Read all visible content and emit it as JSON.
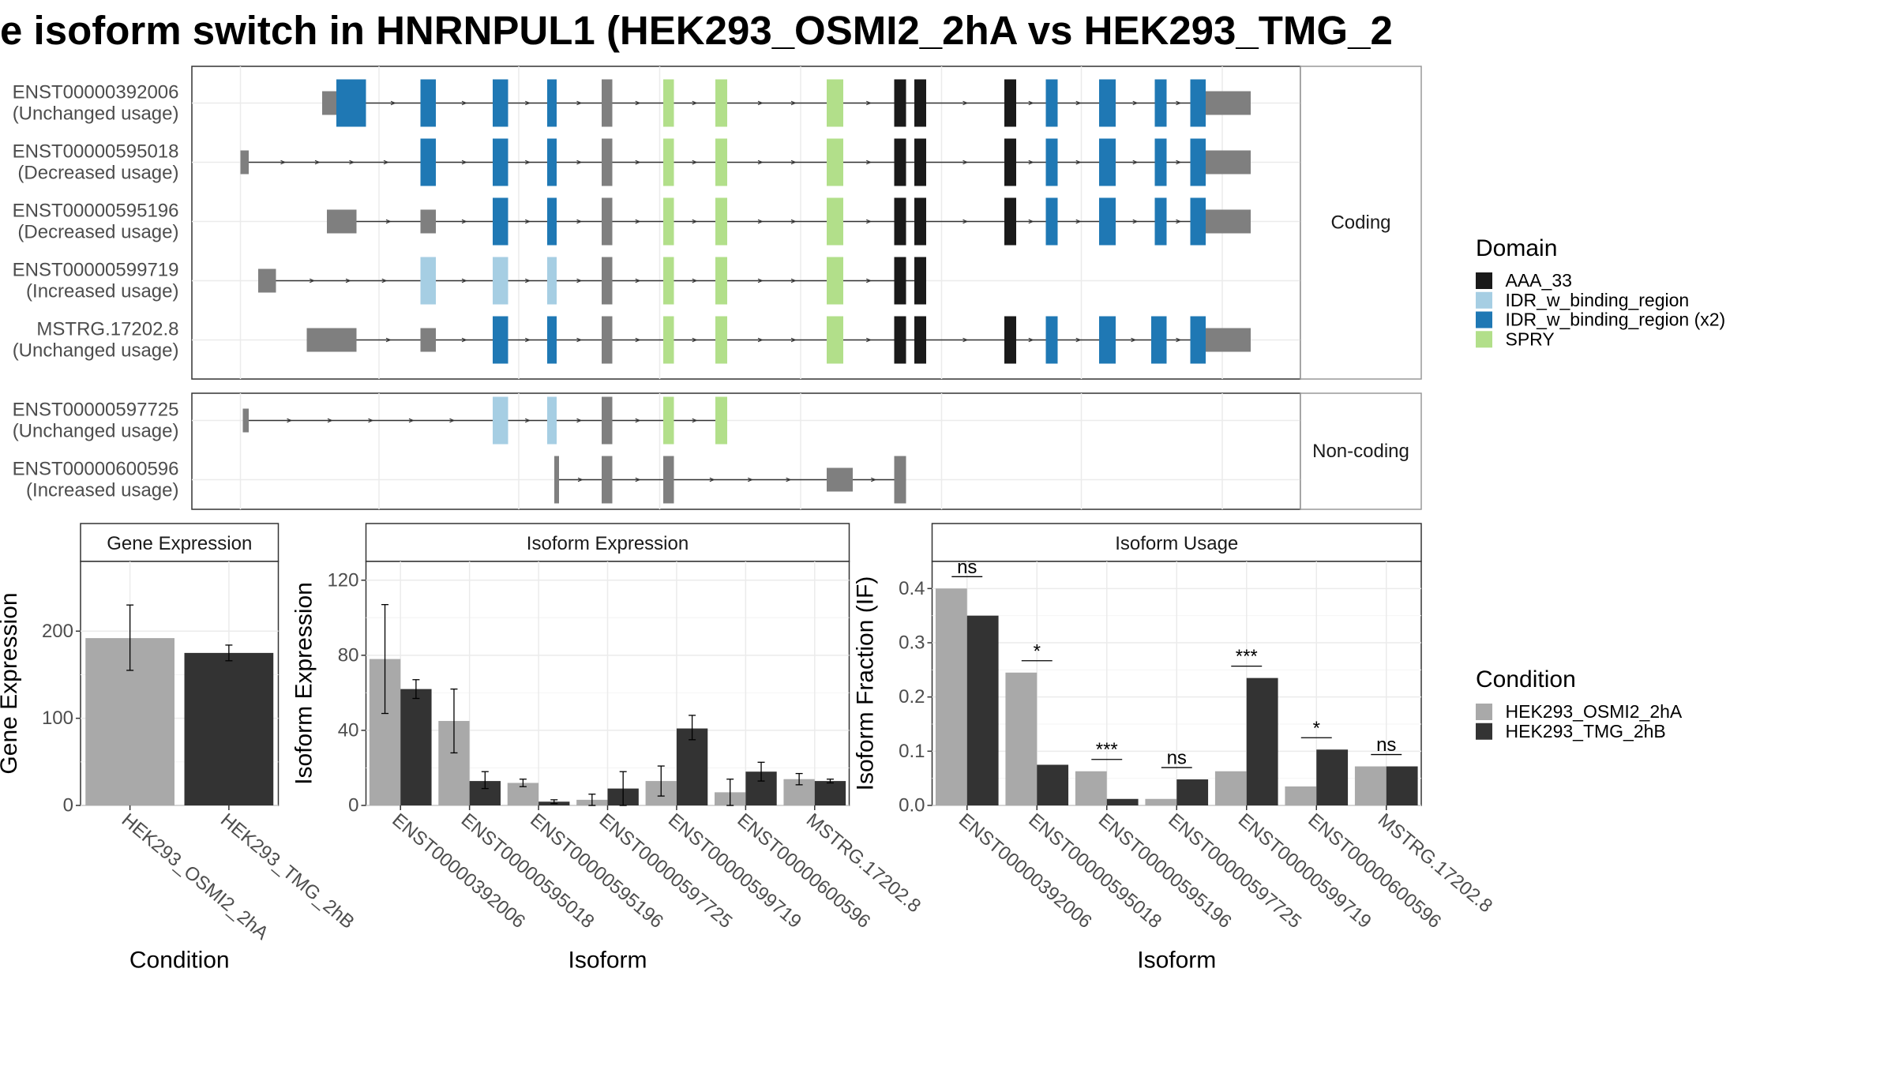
{
  "title": "e isoform switch in HNRNPUL1 (HEK293_OSMI2_2hA vs HEK293_TMG_2",
  "colors": {
    "AAA_33": "#1a1a1a",
    "IDR_w_binding_region": "#a6cee3",
    "IDR_w_binding_region (x2)": "#1f78b4",
    "SPRY": "#b2df8a",
    "none": "#7f7f7f",
    "cond_a": "#a9a9a9",
    "cond_b": "#333333"
  },
  "legends": {
    "domain": {
      "title": "Domain",
      "items": [
        "AAA_33",
        "IDR_w_binding_region",
        "IDR_w_binding_region (x2)",
        "SPRY"
      ]
    },
    "condition": {
      "title": "Condition",
      "items": [
        "HEK293_OSMI2_2hA",
        "HEK293_TMG_2hB"
      ]
    }
  },
  "transcripts": {
    "exon_positions": [
      [
        272,
        284
      ],
      [
        284,
        309
      ],
      [
        355,
        368
      ],
      [
        416,
        429
      ],
      [
        462,
        470
      ],
      [
        508,
        517
      ],
      [
        560,
        569
      ],
      [
        604,
        614
      ],
      [
        698,
        712
      ],
      [
        755,
        765
      ],
      [
        772,
        782
      ],
      [
        848,
        858
      ],
      [
        883,
        893
      ],
      [
        928,
        942
      ],
      [
        975,
        985
      ],
      [
        1005,
        1018
      ],
      [
        1018,
        1056
      ]
    ],
    "coding": {
      "panel_label": "Coding",
      "rows": [
        {
          "id": "ENST00000392006",
          "usage": "(Unchanged usage)",
          "span": [
            272,
            1056
          ],
          "exons": [
            [
              272,
              284,
              "none"
            ],
            [
              284,
              309,
              "IDR_w_binding_region (x2)"
            ],
            [
              355,
              368,
              "IDR_w_binding_region (x2)"
            ],
            [
              416,
              429,
              "IDR_w_binding_region (x2)"
            ],
            [
              462,
              470,
              "IDR_w_binding_region (x2)"
            ],
            [
              508,
              517,
              "none"
            ],
            [
              560,
              569,
              "SPRY"
            ],
            [
              604,
              614,
              "SPRY"
            ],
            [
              698,
              712,
              "SPRY"
            ],
            [
              755,
              765,
              "AAA_33"
            ],
            [
              772,
              782,
              "AAA_33"
            ],
            [
              848,
              858,
              "AAA_33"
            ],
            [
              883,
              893,
              "IDR_w_binding_region (x2)"
            ],
            [
              928,
              942,
              "IDR_w_binding_region (x2)"
            ],
            [
              975,
              985,
              "IDR_w_binding_region (x2)"
            ],
            [
              1005,
              1018,
              "IDR_w_binding_region (x2)"
            ],
            [
              1018,
              1056,
              "none"
            ]
          ]
        },
        {
          "id": "ENST00000595018",
          "usage": "(Decreased usage)",
          "span": [
            203,
            1056
          ],
          "exons": [
            [
              203,
              210,
              "none"
            ],
            [
              355,
              368,
              "IDR_w_binding_region (x2)"
            ],
            [
              416,
              429,
              "IDR_w_binding_region (x2)"
            ],
            [
              462,
              470,
              "IDR_w_binding_region (x2)"
            ],
            [
              508,
              517,
              "none"
            ],
            [
              560,
              569,
              "SPRY"
            ],
            [
              604,
              614,
              "SPRY"
            ],
            [
              698,
              712,
              "SPRY"
            ],
            [
              755,
              765,
              "AAA_33"
            ],
            [
              772,
              782,
              "AAA_33"
            ],
            [
              848,
              858,
              "AAA_33"
            ],
            [
              883,
              893,
              "IDR_w_binding_region (x2)"
            ],
            [
              928,
              942,
              "IDR_w_binding_region (x2)"
            ],
            [
              975,
              985,
              "IDR_w_binding_region (x2)"
            ],
            [
              1005,
              1018,
              "IDR_w_binding_region (x2)"
            ],
            [
              1018,
              1056,
              "none"
            ]
          ]
        },
        {
          "id": "ENST00000595196",
          "usage": "(Decreased usage)",
          "span": [
            276,
            1056
          ],
          "exons": [
            [
              276,
              301,
              "none"
            ],
            [
              355,
              368,
              "none"
            ],
            [
              416,
              429,
              "IDR_w_binding_region (x2)"
            ],
            [
              462,
              470,
              "IDR_w_binding_region (x2)"
            ],
            [
              508,
              517,
              "none"
            ],
            [
              560,
              569,
              "SPRY"
            ],
            [
              604,
              614,
              "SPRY"
            ],
            [
              698,
              712,
              "SPRY"
            ],
            [
              755,
              765,
              "AAA_33"
            ],
            [
              772,
              782,
              "AAA_33"
            ],
            [
              848,
              858,
              "AAA_33"
            ],
            [
              883,
              893,
              "IDR_w_binding_region (x2)"
            ],
            [
              928,
              942,
              "IDR_w_binding_region (x2)"
            ],
            [
              975,
              985,
              "IDR_w_binding_region (x2)"
            ],
            [
              1005,
              1018,
              "IDR_w_binding_region (x2)"
            ],
            [
              1018,
              1056,
              "none"
            ]
          ]
        },
        {
          "id": "ENST00000599719",
          "usage": "(Increased usage)",
          "span": [
            218,
            782
          ],
          "exons": [
            [
              218,
              233,
              "none"
            ],
            [
              355,
              368,
              "IDR_w_binding_region"
            ],
            [
              416,
              429,
              "IDR_w_binding_region"
            ],
            [
              462,
              470,
              "IDR_w_binding_region"
            ],
            [
              508,
              517,
              "none"
            ],
            [
              560,
              569,
              "SPRY"
            ],
            [
              604,
              614,
              "SPRY"
            ],
            [
              698,
              712,
              "SPRY"
            ],
            [
              755,
              765,
              "AAA_33"
            ],
            [
              772,
              782,
              "AAA_33"
            ]
          ]
        },
        {
          "id": "MSTRG.17202.8",
          "usage": "(Unchanged usage)",
          "span": [
            259,
            1056
          ],
          "exons": [
            [
              259,
              301,
              "none"
            ],
            [
              355,
              368,
              "none"
            ],
            [
              416,
              429,
              "IDR_w_binding_region (x2)"
            ],
            [
              462,
              470,
              "IDR_w_binding_region (x2)"
            ],
            [
              508,
              517,
              "none"
            ],
            [
              560,
              569,
              "SPRY"
            ],
            [
              604,
              614,
              "SPRY"
            ],
            [
              698,
              712,
              "SPRY"
            ],
            [
              755,
              765,
              "AAA_33"
            ],
            [
              772,
              782,
              "AAA_33"
            ],
            [
              848,
              858,
              "AAA_33"
            ],
            [
              883,
              893,
              "IDR_w_binding_region (x2)"
            ],
            [
              928,
              942,
              "IDR_w_binding_region (x2)"
            ],
            [
              972,
              985,
              "IDR_w_binding_region (x2)"
            ],
            [
              1005,
              1018,
              "IDR_w_binding_region (x2)"
            ],
            [
              1018,
              1056,
              "none"
            ]
          ]
        }
      ]
    },
    "noncoding": {
      "panel_label": "Non-coding",
      "rows": [
        {
          "id": "ENST00000597725",
          "usage": "(Unchanged usage)",
          "span": [
            205,
            614
          ],
          "exons": [
            [
              205,
              210,
              "none"
            ],
            [
              416,
              429,
              "IDR_w_binding_region"
            ],
            [
              462,
              470,
              "IDR_w_binding_region"
            ],
            [
              508,
              517,
              "none"
            ],
            [
              560,
              569,
              "SPRY"
            ],
            [
              604,
              614,
              "SPRY"
            ]
          ]
        },
        {
          "id": "ENST00000600596",
          "usage": "(Increased usage)",
          "span": [
            468,
            765
          ],
          "exons": [
            [
              468,
              472,
              "none"
            ],
            [
              508,
              517,
              "none"
            ],
            [
              560,
              569,
              "none"
            ],
            [
              698,
              720,
              "none"
            ],
            [
              755,
              765,
              "none"
            ]
          ]
        }
      ]
    }
  },
  "chart_data": [
    {
      "type": "bar",
      "title": "Gene Expression",
      "xlabel": "Condition",
      "ylabel": "Gene Expression",
      "categories": [
        "HEK293_OSMI2_2hA",
        "HEK293_TMG_2hB"
      ],
      "values": [
        192,
        175
      ],
      "errors": [
        [
          155,
          230
        ],
        [
          166,
          184
        ]
      ],
      "ylim": [
        0,
        280
      ],
      "yticks": [
        0,
        100,
        200
      ]
    },
    {
      "type": "bar",
      "title": "Isoform Expression",
      "xlabel": "Isoform",
      "ylabel": "Isoform Expression",
      "categories": [
        "ENST00000392006",
        "ENST00000595018",
        "ENST00000595196",
        "ENST00000597725",
        "ENST00000599719",
        "ENST00000600596",
        "MSTRG.17202.8"
      ],
      "series": [
        {
          "name": "HEK293_OSMI2_2hA",
          "values": [
            78,
            45,
            12,
            3,
            13,
            7,
            14
          ],
          "errors": [
            [
              49,
              107
            ],
            [
              28,
              62
            ],
            [
              10,
              14
            ],
            [
              0,
              6
            ],
            [
              5,
              21
            ],
            [
              0,
              14
            ],
            [
              11,
              17
            ]
          ]
        },
        {
          "name": "HEK293_TMG_2hB",
          "values": [
            62,
            13,
            2,
            9,
            41,
            18,
            13
          ],
          "errors": [
            [
              57,
              67
            ],
            [
              9,
              18
            ],
            [
              1,
              3
            ],
            [
              0,
              18
            ],
            [
              35,
              48
            ],
            [
              13,
              23
            ],
            [
              12,
              14
            ]
          ]
        }
      ],
      "ylim": [
        0,
        130
      ],
      "yticks": [
        0,
        40,
        80,
        120
      ]
    },
    {
      "type": "bar",
      "title": "Isoform Usage",
      "xlabel": "Isoform",
      "ylabel": "Isoform Fraction (IF)",
      "categories": [
        "ENST00000392006",
        "ENST00000595018",
        "ENST00000595196",
        "ENST00000597725",
        "ENST00000599719",
        "ENST00000600596",
        "MSTRG.17202.8"
      ],
      "series": [
        {
          "name": "HEK293_OSMI2_2hA",
          "values": [
            0.4,
            0.245,
            0.063,
            0.012,
            0.063,
            0.035,
            0.072
          ]
        },
        {
          "name": "HEK293_TMG_2hB",
          "values": [
            0.35,
            0.075,
            0.012,
            0.048,
            0.235,
            0.103,
            0.072
          ]
        }
      ],
      "significance": [
        "ns",
        "*",
        "***",
        "ns",
        "***",
        "*",
        "ns"
      ],
      "ylim": [
        0,
        0.45
      ],
      "yticks": [
        "0.0",
        "0.1",
        "0.2",
        "0.3",
        "0.4"
      ]
    }
  ]
}
